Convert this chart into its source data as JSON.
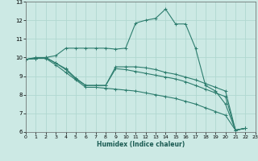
{
  "xlabel": "Humidex (Indice chaleur)",
  "background_color": "#cce9e4",
  "line_color": "#2d7d6e",
  "grid_color": "#b0d8d0",
  "xlim": [
    0,
    23
  ],
  "ylim": [
    6,
    13
  ],
  "xticks": [
    0,
    1,
    2,
    3,
    4,
    5,
    6,
    7,
    8,
    9,
    10,
    11,
    12,
    13,
    14,
    15,
    16,
    17,
    18,
    19,
    20,
    21,
    22,
    23
  ],
  "yticks": [
    6,
    7,
    8,
    9,
    10,
    11,
    12,
    13
  ],
  "series": [
    [
      9.9,
      10.0,
      10.0,
      10.1,
      10.5,
      10.5,
      10.5,
      10.5,
      10.5,
      10.45,
      10.5,
      11.85,
      12.0,
      12.1,
      12.6,
      11.8,
      11.8,
      10.5,
      8.5,
      8.2,
      7.5,
      6.1,
      6.2
    ],
    [
      9.9,
      9.95,
      10.0,
      9.7,
      9.4,
      8.9,
      8.5,
      8.5,
      8.5,
      9.5,
      9.5,
      9.5,
      9.45,
      9.35,
      9.2,
      9.1,
      8.95,
      8.8,
      8.6,
      8.4,
      8.2,
      6.1,
      6.2
    ],
    [
      9.9,
      9.95,
      10.0,
      9.7,
      9.35,
      8.85,
      8.5,
      8.5,
      8.5,
      9.4,
      9.35,
      9.25,
      9.15,
      9.05,
      8.95,
      8.85,
      8.7,
      8.5,
      8.3,
      8.1,
      7.9,
      6.1,
      6.2
    ],
    [
      9.9,
      9.95,
      9.95,
      9.6,
      9.2,
      8.8,
      8.4,
      8.4,
      8.35,
      8.3,
      8.25,
      8.2,
      8.1,
      8.0,
      7.9,
      7.8,
      7.65,
      7.5,
      7.3,
      7.1,
      6.9,
      6.1,
      6.2
    ]
  ]
}
